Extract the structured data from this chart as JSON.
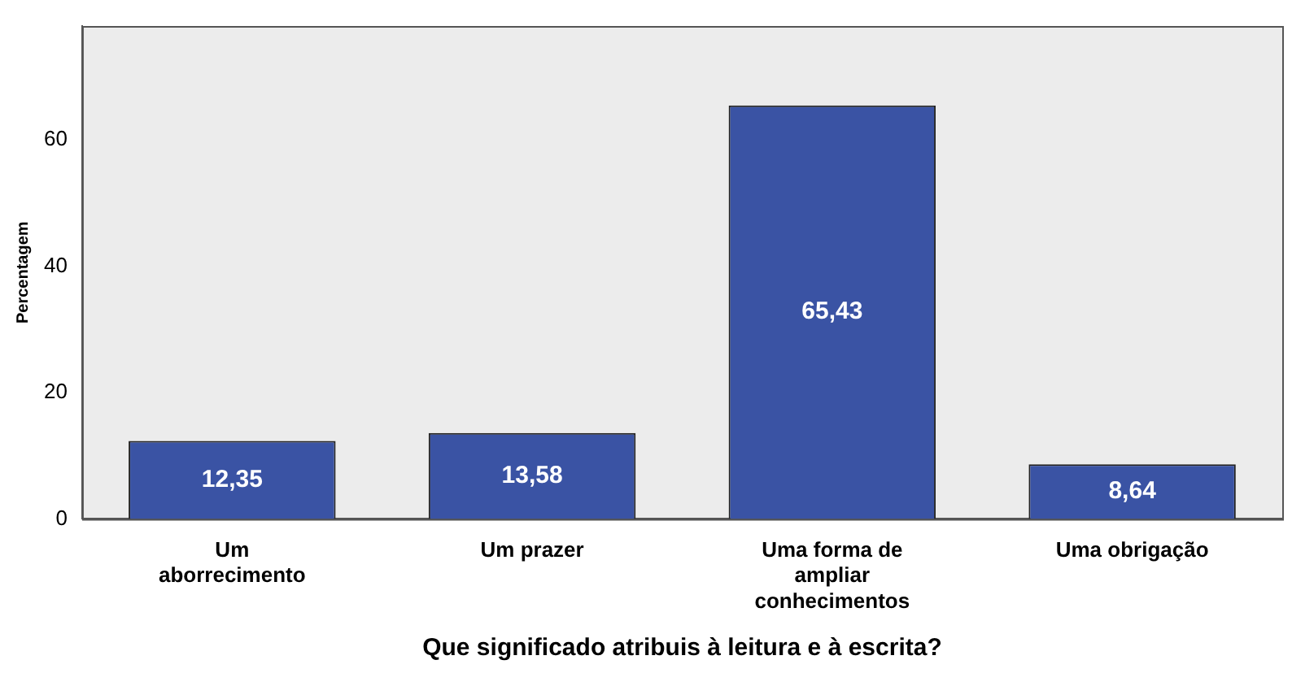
{
  "chart_data": {
    "type": "bar",
    "xlabel": "Que significado atribuis à leitura e à escrita?",
    "ylabel": "Percentagem",
    "categories": [
      "Um aborrecimento",
      "Um prazer",
      "Uma forma de ampliar conhecimentos",
      "Uma obrigação"
    ],
    "values": [
      12.35,
      13.58,
      65.43,
      8.64
    ],
    "value_labels": [
      "12,35",
      "13,58",
      "65,43",
      "8,64"
    ],
    "color": "#3a53a4",
    "ylim": [
      0,
      78
    ],
    "yticks": [
      0,
      20,
      40,
      60
    ],
    "grid": false,
    "legend": false
  }
}
